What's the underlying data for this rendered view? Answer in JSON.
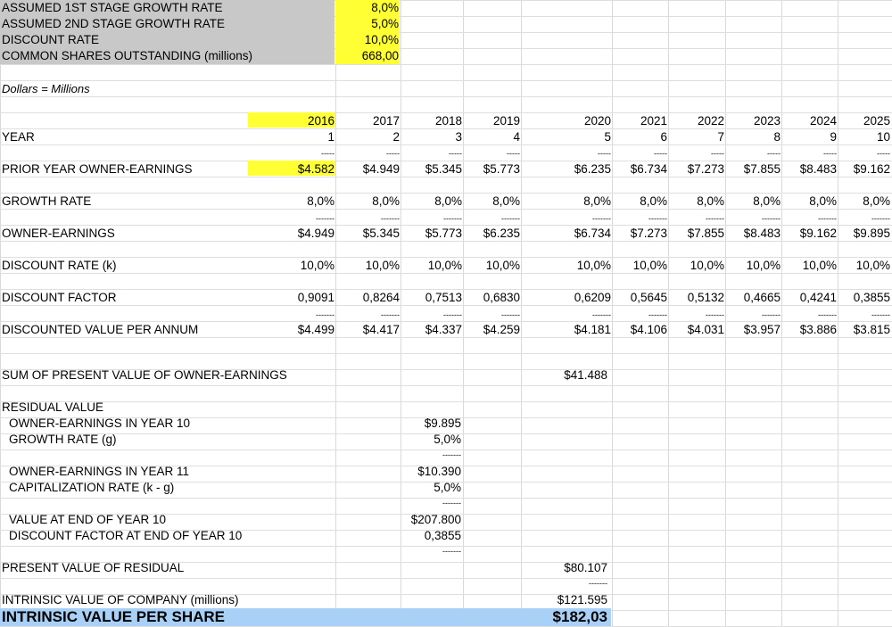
{
  "assumptions": [
    {
      "label": "ASSUMED 1ST STAGE GROWTH RATE",
      "value": "8,0%"
    },
    {
      "label": "ASSUMED 2ND STAGE GROWTH RATE",
      "value": "5,0%"
    },
    {
      "label": "DISCOUNT RATE",
      "value": "10,0%"
    },
    {
      "label": "COMMON SHARES OUTSTANDING (millions)",
      "value": "668,00"
    }
  ],
  "units_note": "Dollars = Millions",
  "years": [
    "2016",
    "2017",
    "2018",
    "2019",
    "2020",
    "2021",
    "2022",
    "2023",
    "2024",
    "2025"
  ],
  "year_numbers": [
    "1",
    "2",
    "3",
    "4",
    "5",
    "6",
    "7",
    "8",
    "9",
    "10"
  ],
  "year_label": "YEAR",
  "rows": {
    "prior": {
      "label": "PRIOR YEAR OWNER-EARNINGS",
      "values": [
        "$4.582",
        "$4.949",
        "$5.345",
        "$5.773",
        "$6.235",
        "$6.734",
        "$7.273",
        "$7.855",
        "$8.483",
        "$9.162"
      ]
    },
    "growth": {
      "label": "GROWTH RATE",
      "values": [
        "8,0%",
        "8,0%",
        "8,0%",
        "8,0%",
        "8,0%",
        "8,0%",
        "8,0%",
        "8,0%",
        "8,0%",
        "8,0%"
      ]
    },
    "owner": {
      "label": "OWNER-EARNINGS",
      "values": [
        "$4.949",
        "$5.345",
        "$5.773",
        "$6.235",
        "$6.734",
        "$7.273",
        "$7.855",
        "$8.483",
        "$9.162",
        "$9.895"
      ]
    },
    "discount_rate": {
      "label": "DISCOUNT RATE (k)",
      "values": [
        "10,0%",
        "10,0%",
        "10,0%",
        "10,0%",
        "10,0%",
        "10,0%",
        "10,0%",
        "10,0%",
        "10,0%",
        "10,0%"
      ]
    },
    "discount_factor": {
      "label": "DISCOUNT FACTOR",
      "values": [
        "0,9091",
        "0,8264",
        "0,7513",
        "0,6830",
        "0,6209",
        "0,5645",
        "0,5132",
        "0,4665",
        "0,4241",
        "0,3855"
      ]
    },
    "discounted": {
      "label": "DISCOUNTED VALUE PER ANNUM",
      "values": [
        "$4.499",
        "$4.417",
        "$4.337",
        "$4.259",
        "$4.181",
        "$4.106",
        "$4.031",
        "$3.957",
        "$3.886",
        "$3.815"
      ]
    }
  },
  "dash_short": "-----",
  "dash_long": "-------",
  "sum_pv": {
    "label": "SUM OF PRESENT VALUE OF OWNER-EARNINGS",
    "value": "$41.488"
  },
  "residual": {
    "title": "RESIDUAL VALUE",
    "oe_year10": {
      "label": "OWNER-EARNINGS IN YEAR 10",
      "value": "$9.895"
    },
    "growth_g": {
      "label": "GROWTH RATE (g)",
      "value": "5,0%"
    },
    "oe_year11": {
      "label": "OWNER-EARNINGS IN YEAR 11",
      "value": "$10.390"
    },
    "cap_rate": {
      "label": "CAPITALIZATION RATE (k - g)",
      "value": "5,0%"
    },
    "value_end10": {
      "label": "VALUE AT END OF YEAR 10",
      "value": "$207.800"
    },
    "df_end10": {
      "label": "DISCOUNT FACTOR AT END OF YEAR 10",
      "value": "0,3855"
    }
  },
  "pv_residual": {
    "label": "PRESENT VALUE OF RESIDUAL",
    "value": "$80.107"
  },
  "intrinsic_company": {
    "label": "INTRINSIC VALUE OF COMPANY (millions)",
    "value": "$121.595"
  },
  "intrinsic_share": {
    "label": "INTRINSIC VALUE PER SHARE",
    "value": "$182,03"
  },
  "colors": {
    "label_fill": "#c8c8c8",
    "highlight": "#ffff33",
    "total_row": "#a9d1f7",
    "grid": "#d9d9d9"
  }
}
